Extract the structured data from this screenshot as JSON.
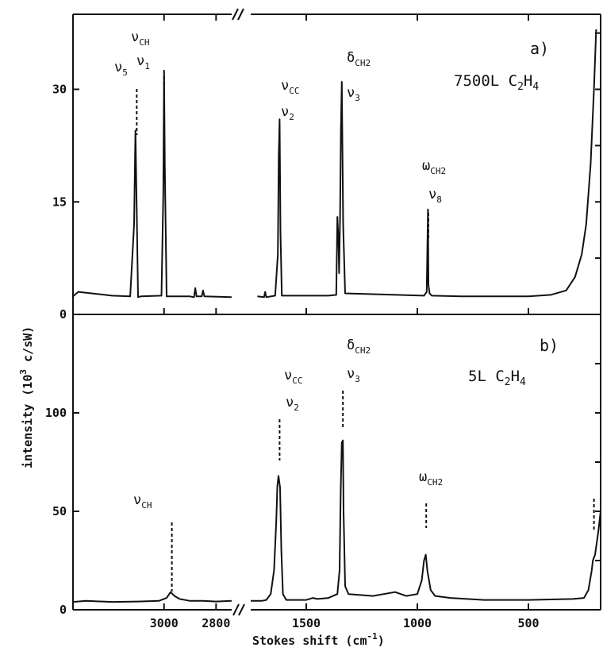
{
  "chart_data": [
    {
      "type": "line",
      "panel_label": "a)",
      "condition": "7500L C2H4",
      "ylim": [
        0,
        40
      ],
      "yticks": [
        "0",
        "15",
        "30"
      ],
      "xlabel": "Stokes shift (cm-1)",
      "ylabel": "intensity (10^3 c/sW)",
      "x_axis_break": "between 2700 and 1750",
      "annotations": [
        {
          "text": "ν5",
          "x": 3105
        },
        {
          "text": "νCH ν1",
          "x": 3000
        },
        {
          "text": "νCC ν2",
          "x": 1620
        },
        {
          "text": "δCH2 ν3",
          "x": 1340
        },
        {
          "text": "ωCH2 ν8",
          "x": 950
        }
      ],
      "series": [
        {
          "x": [
            3350,
            3330,
            3200,
            3130,
            3115,
            3110,
            3105,
            3100,
            3090,
            3010,
            3003,
            3000,
            2997,
            2990,
            2900,
            2885,
            2880,
            2875,
            2855,
            2850,
            2845,
            2740,
            1720,
            1690,
            1685,
            1680,
            1640,
            1628,
            1624,
            1620,
            1616,
            1610,
            1400,
            1365,
            1360,
            1355,
            1352,
            1348,
            1344,
            1340,
            1334,
            1325,
            970,
            958,
            952,
            950,
            945,
            935,
            800,
            500,
            400,
            330,
            290,
            260,
            240,
            220,
            205,
            195
          ],
          "y": [
            2.4,
            3,
            2.5,
            2.4,
            12,
            24.5,
            14,
            2.3,
            2.4,
            2.5,
            16,
            32.5,
            20,
            2.4,
            2.4,
            2.3,
            3.5,
            2.4,
            2.4,
            3.2,
            2.4,
            2.3,
            2.4,
            2.3,
            3,
            2.3,
            2.5,
            8,
            21,
            26,
            11,
            2.5,
            2.5,
            2.6,
            13,
            10,
            5.5,
            13,
            25,
            31,
            12,
            2.8,
            2.5,
            3,
            14,
            4,
            2.8,
            2.5,
            2.4,
            2.4,
            2.6,
            3.2,
            5,
            8,
            12,
            20,
            30,
            38
          ]
        }
      ]
    },
    {
      "type": "line",
      "panel_label": "b)",
      "condition": "5L C2H4",
      "ylim": [
        0,
        150
      ],
      "yticks": [
        "0",
        "50",
        "100"
      ],
      "xticks": [
        "3000",
        "2800",
        "1500",
        "1000",
        "500"
      ],
      "annotations": [
        {
          "text": "νCH",
          "x": 2970
        },
        {
          "text": "νCC ν2",
          "x": 1620
        },
        {
          "text": "δCH2 ν3",
          "x": 1335
        },
        {
          "text": "ωCH2",
          "x": 960
        }
      ],
      "series": [
        {
          "x": [
            3350,
            3300,
            3200,
            3100,
            3020,
            2990,
            2975,
            2960,
            2940,
            2900,
            2850,
            2800,
            2740,
            1750,
            1700,
            1680,
            1660,
            1645,
            1635,
            1630,
            1625,
            1618,
            1612,
            1605,
            1590,
            1500,
            1470,
            1450,
            1400,
            1360,
            1350,
            1345,
            1340,
            1335,
            1332,
            1325,
            1310,
            1200,
            1100,
            1050,
            1000,
            980,
            970,
            962,
            955,
            940,
            920,
            850,
            700,
            500,
            300,
            250,
            230,
            215,
            210,
            200,
            185,
            175
          ],
          "y": [
            4,
            4.5,
            4,
            4.2,
            4.5,
            6,
            9,
            7,
            5.5,
            4.5,
            4.5,
            4.2,
            4.5,
            4.5,
            4.5,
            5,
            8,
            20,
            45,
            63,
            68,
            62,
            30,
            8,
            5,
            5,
            6,
            5.5,
            6,
            8,
            20,
            60,
            85,
            86,
            50,
            12,
            8,
            7,
            9,
            7,
            8,
            15,
            25,
            28,
            20,
            10,
            7,
            6,
            5,
            5,
            5.5,
            6,
            10,
            20,
            25,
            28,
            40,
            50
          ]
        }
      ]
    }
  ],
  "texts": {
    "y_axis_label": "intensity",
    "y_axis_units": "(10",
    "y_axis_units_exp": "3",
    "y_axis_units_tail": " c/sW)",
    "x_axis_label": "Stokes shift (cm",
    "x_axis_label_exp": "-1",
    "x_axis_label_tail": ")",
    "panel_a": {
      "label": "a)",
      "condition_main": "7500L C",
      "condition_sub1": "2",
      "condition_mid": "H",
      "condition_sub2": "4",
      "ann": [
        {
          "key": "nu5",
          "main": "ν",
          "sub": "5"
        },
        {
          "key": "nuch",
          "main": "ν",
          "sub": "CH"
        },
        {
          "key": "nu1",
          "main": "ν",
          "sub": "1"
        },
        {
          "key": "nucc",
          "main": "ν",
          "sub": "CC"
        },
        {
          "key": "nu2",
          "main": "ν",
          "sub": "2"
        },
        {
          "key": "dch2",
          "main": "δ",
          "sub": "CH2"
        },
        {
          "key": "nu3",
          "main": "ν",
          "sub": "3"
        },
        {
          "key": "wch2",
          "main": "ω",
          "sub": "CH2"
        },
        {
          "key": "nu8",
          "main": "ν",
          "sub": "8"
        }
      ]
    },
    "panel_b": {
      "label": "b)",
      "condition_main": "5L C",
      "condition_sub1": "2",
      "condition_mid": "H",
      "condition_sub2": "4",
      "ann": [
        {
          "key": "nuch",
          "main": "ν",
          "sub": "CH"
        },
        {
          "key": "nucc",
          "main": "ν",
          "sub": "CC"
        },
        {
          "key": "nu2",
          "main": "ν",
          "sub": "2"
        },
        {
          "key": "dch2",
          "main": "δ",
          "sub": "CH2"
        },
        {
          "key": "nu3",
          "main": "ν",
          "sub": "3"
        },
        {
          "key": "wch2",
          "main": "ω",
          "sub": "CH2"
        }
      ]
    }
  }
}
